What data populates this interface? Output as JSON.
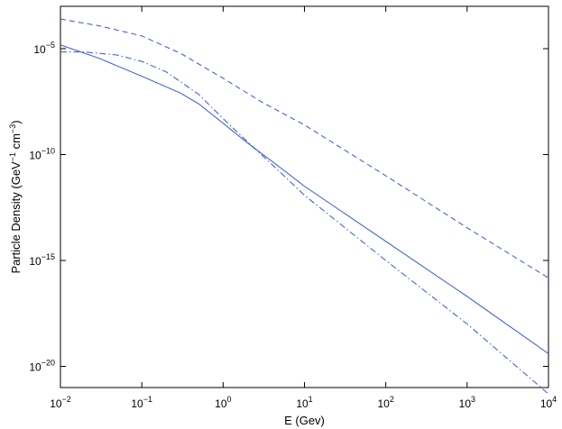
{
  "chart_data": {
    "type": "line",
    "title": "",
    "xlabel": "E (Gev)",
    "ylabel": {
      "pre": "Particle Density (GeV",
      "exp1": "−1",
      "mid": " cm",
      "exp2": "−3",
      "post": ")"
    },
    "x_scale": "log",
    "y_scale": "log",
    "xlim": [
      0.01,
      10000
    ],
    "ylim": [
      1e-21,
      0.001
    ],
    "x_ticks": [
      {
        "value": 0.01,
        "base": "10",
        "exp": "−2"
      },
      {
        "value": 0.1,
        "base": "10",
        "exp": "−1"
      },
      {
        "value": 1,
        "base": "10",
        "exp": "0"
      },
      {
        "value": 10,
        "base": "10",
        "exp": "1"
      },
      {
        "value": 100,
        "base": "10",
        "exp": "2"
      },
      {
        "value": 1000,
        "base": "10",
        "exp": "3"
      },
      {
        "value": 10000,
        "base": "10",
        "exp": "4"
      }
    ],
    "y_ticks": [
      {
        "value": 1e-05,
        "base": "10",
        "exp": "−5"
      },
      {
        "value": 1e-10,
        "base": "10",
        "exp": "−10"
      },
      {
        "value": 1e-15,
        "base": "10",
        "exp": "−15"
      },
      {
        "value": 1e-20,
        "base": "10",
        "exp": "−20"
      }
    ],
    "grid": false,
    "line_color": "#3355dd",
    "series": [
      {
        "style": "solid",
        "x": [
          0.01,
          0.03,
          0.1,
          0.3,
          0.5,
          1,
          2,
          5,
          10,
          100,
          1000,
          10000
        ],
        "y": [
          1.5e-05,
          3.5e-06,
          5e-07,
          8e-08,
          2.5e-08,
          3e-09,
          3.5e-10,
          2.5e-11,
          3.2e-12,
          8e-15,
          2e-17,
          4e-20
        ]
      },
      {
        "style": "dashed",
        "x": [
          0.01,
          0.03,
          0.1,
          0.3,
          1,
          3,
          10,
          100,
          1000,
          10000
        ],
        "y": [
          0.00025,
          0.00012,
          4e-05,
          6e-06,
          4e-07,
          3e-08,
          2.5e-09,
          1e-11,
          3.5e-14,
          1.5e-16
        ]
      },
      {
        "style": "dashdot",
        "x": [
          0.01,
          0.02,
          0.05,
          0.1,
          0.2,
          0.5,
          1,
          2,
          5,
          10,
          100,
          1000,
          10000
        ],
        "y": [
          7e-06,
          7e-06,
          5e-06,
          2.5e-06,
          8e-07,
          7e-08,
          5e-09,
          4e-10,
          1.5e-11,
          1.2e-12,
          1e-15,
          1e-18,
          5e-22
        ]
      }
    ]
  }
}
